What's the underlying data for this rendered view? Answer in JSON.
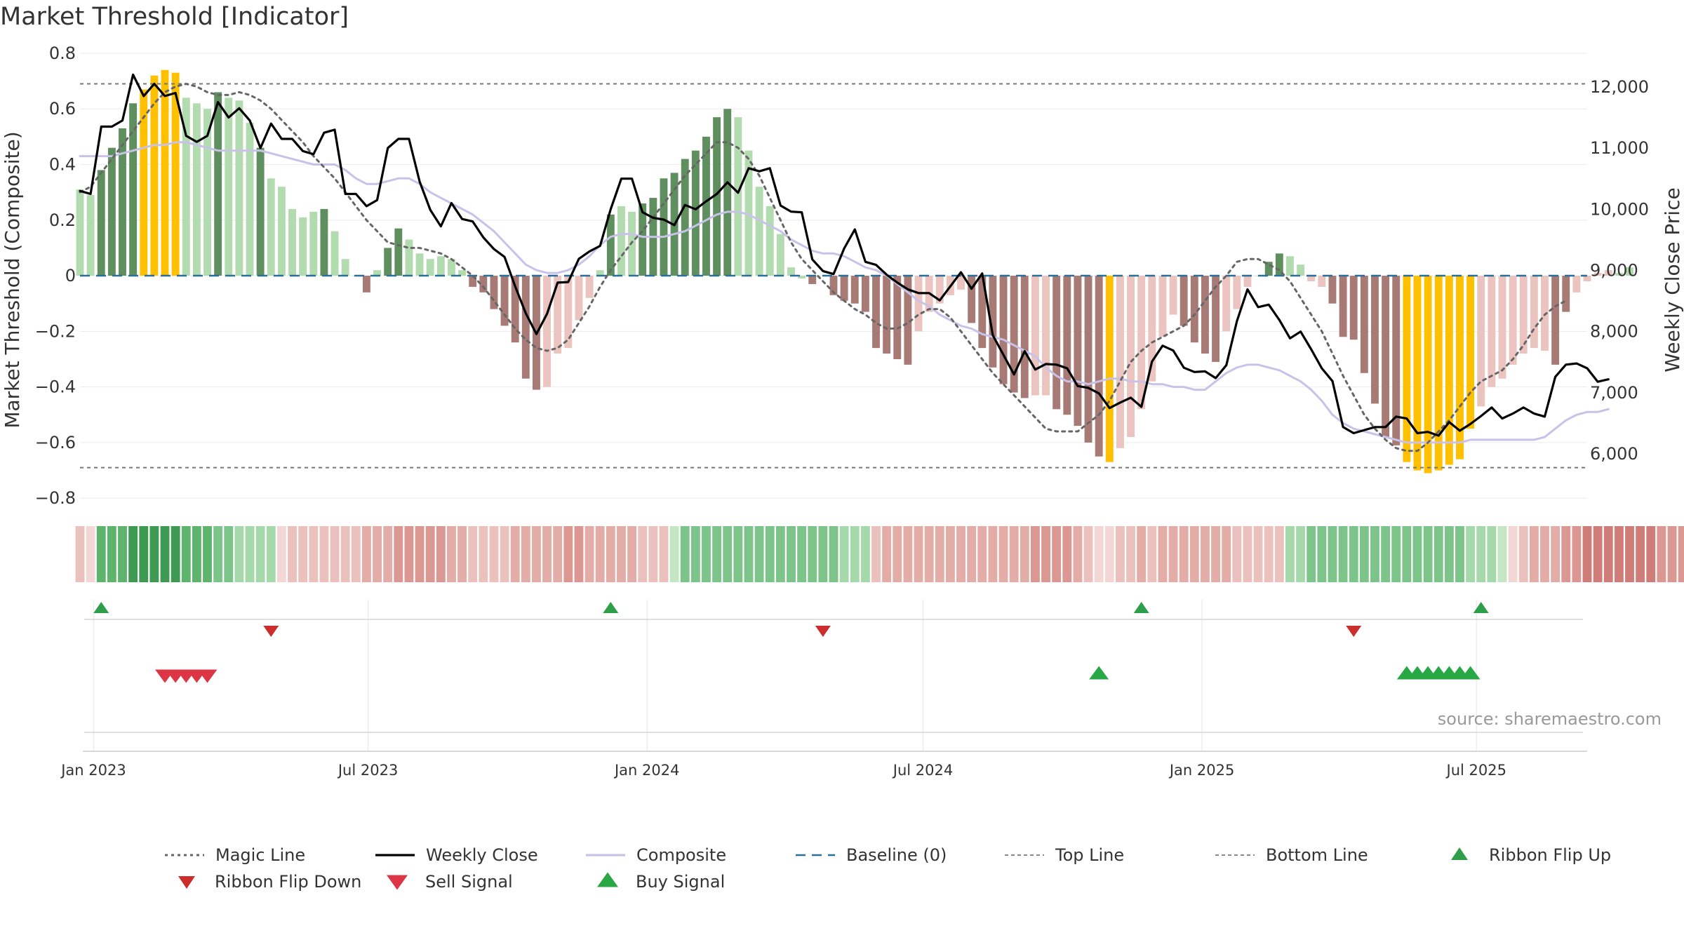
{
  "chart_data": {
    "type": "bar",
    "title": "Market Threshold [Indicator]",
    "ylabel": "Market Threshold (Composite)",
    "y2label": "Weekly Close Price",
    "source": "source: sharemaestro.com",
    "ylim": [
      -0.85,
      0.82
    ],
    "y2lim": [
      5050,
      12640
    ],
    "yticks": [
      0.8,
      0.6,
      0.4,
      0.2,
      0,
      -0.2,
      -0.4,
      -0.6,
      -0.8
    ],
    "yticklabels": [
      "0.8",
      "0.6",
      "0.4",
      "0.2",
      "0",
      "−0.2",
      "−0.4",
      "−0.6",
      "−0.8"
    ],
    "y2ticks": [
      12000,
      11000,
      10000,
      9000,
      8000,
      7000,
      6000
    ],
    "y2ticklabels": [
      "12,000",
      "11,000",
      "10,000",
      "9,000",
      "8,000",
      "7,000",
      "6,000"
    ],
    "x_range": [
      "2022-12-23",
      "2025-09-12"
    ],
    "x_start": "2022-12-23",
    "x_step_days": 7,
    "xticks": [
      "2023-01-01",
      "2023-07-01",
      "2024-01-01",
      "2024-07-01",
      "2025-01-01",
      "2025-07-01"
    ],
    "xticklabels": [
      "Jan 2023",
      "Jul 2023",
      "Jan 2024",
      "Jul 2024",
      "Jan 2025",
      "Jul 2025"
    ],
    "top_line": 0.69,
    "bottom_line": -0.69,
    "baseline": 0,
    "grid": true,
    "legend_position": "bottom",
    "colors": {
      "bull_strong": "#5f8f5f",
      "bull_weak": "#b3dbb0",
      "bear_strong": "#a87a76",
      "bear_weak": "#ebc3bf",
      "extreme": "#ffc000",
      "weekly_close": "#000000",
      "composite": "#c9c2e8",
      "magic_line": "#666666",
      "baseline": "#2a6f97",
      "threshold_lines": "#777777",
      "ribbon_up": "#2e9e4a",
      "ribbon_down": "#cc2d2d",
      "sell_signal": "#dc3545",
      "buy_signal": "#28a745"
    },
    "series": [
      {
        "name": "Composite",
        "kind": "bar",
        "values": [
          0.31,
          0.29,
          0.38,
          0.46,
          0.53,
          0.62,
          0.67,
          0.72,
          0.74,
          0.73,
          0.64,
          0.62,
          0.6,
          0.66,
          0.64,
          0.63,
          0.55,
          0.46,
          0.35,
          0.32,
          0.24,
          0.21,
          0.23,
          0.24,
          0.16,
          0.06,
          0.0,
          -0.06,
          0.02,
          0.1,
          0.17,
          0.13,
          0.08,
          0.06,
          0.07,
          0.06,
          0.02,
          -0.04,
          -0.06,
          -0.12,
          -0.18,
          -0.24,
          -0.37,
          -0.41,
          -0.4,
          -0.28,
          -0.26,
          -0.16,
          -0.08,
          0.02,
          0.22,
          0.25,
          0.23,
          0.26,
          0.28,
          0.35,
          0.37,
          0.42,
          0.45,
          0.5,
          0.57,
          0.6,
          0.57,
          0.45,
          0.32,
          0.25,
          0.15,
          0.03,
          -0.01,
          -0.03,
          0.0,
          -0.07,
          -0.09,
          -0.1,
          -0.13,
          -0.26,
          -0.28,
          -0.3,
          -0.32,
          -0.2,
          -0.13,
          -0.1,
          -0.07,
          -0.05,
          -0.17,
          -0.26,
          -0.33,
          -0.39,
          -0.42,
          -0.44,
          -0.43,
          -0.43,
          -0.48,
          -0.5,
          -0.54,
          -0.6,
          -0.65,
          -0.67,
          -0.62,
          -0.58,
          -0.48,
          -0.38,
          -0.22,
          -0.14,
          -0.18,
          -0.24,
          -0.28,
          -0.31,
          -0.2,
          -0.12,
          -0.04,
          0.0,
          0.05,
          0.08,
          0.07,
          0.04,
          -0.02,
          -0.04,
          -0.1,
          -0.22,
          -0.23,
          -0.35,
          -0.46,
          -0.58,
          -0.61,
          -0.67,
          -0.7,
          -0.71,
          -0.7,
          -0.68,
          -0.66,
          -0.55,
          -0.47,
          -0.4,
          -0.37,
          -0.32,
          -0.28,
          -0.26,
          -0.27,
          -0.32,
          -0.13,
          -0.06,
          -0.02,
          0.01,
          0.02,
          0.01,
          0.03
        ],
        "colors": [
          "bw",
          "bw",
          "bs",
          "bs",
          "bs",
          "bs",
          "ex",
          "ex",
          "ex",
          "ex",
          "bw",
          "bw",
          "bw",
          "bs",
          "bw",
          "bw",
          "bw",
          "bs",
          "bw",
          "bw",
          "bw",
          "bw",
          "bw",
          "bs",
          "bw",
          "bw",
          "bw",
          "rs",
          "bw",
          "bs",
          "bs",
          "bw",
          "bw",
          "bw",
          "bw",
          "bw",
          "bw",
          "rs",
          "rs",
          "rs",
          "rs",
          "rs",
          "rs",
          "rs",
          "rw",
          "rw",
          "rw",
          "rw",
          "rw",
          "bw",
          "bs",
          "bw",
          "bw",
          "bs",
          "bs",
          "bs",
          "bs",
          "bs",
          "bs",
          "bs",
          "bs",
          "bs",
          "bw",
          "bw",
          "bw",
          "bw",
          "bw",
          "bw",
          "bw",
          "rs",
          "bw",
          "rs",
          "rs",
          "rs",
          "rs",
          "rs",
          "rs",
          "rs",
          "rs",
          "rw",
          "rw",
          "rw",
          "rw",
          "rw",
          "rs",
          "rs",
          "rs",
          "rs",
          "rs",
          "rs",
          "rw",
          "rw",
          "rs",
          "rs",
          "rs",
          "rs",
          "rs",
          "ex",
          "rw",
          "rw",
          "rw",
          "rw",
          "rw",
          "rw",
          "rs",
          "rs",
          "rs",
          "rs",
          "rw",
          "rw",
          "rw",
          "bw",
          "bs",
          "bs",
          "bw",
          "bw",
          "rw",
          "rw",
          "rs",
          "rs",
          "rs",
          "rs",
          "rs",
          "rs",
          "rs",
          "ex",
          "ex",
          "ex",
          "ex",
          "ex",
          "ex",
          "ex",
          "rw",
          "rw",
          "rw",
          "rw",
          "rw",
          "rw",
          "rw",
          "rs",
          "rs",
          "rw",
          "rw",
          "rw",
          "rw",
          "bw",
          "bw",
          "bs"
        ]
      },
      {
        "name": "Weekly Close",
        "kind": "line",
        "values": [
          10300,
          10250,
          11350,
          11350,
          11450,
          12200,
          11850,
          12050,
          11850,
          11900,
          11200,
          11100,
          11200,
          11750,
          11500,
          11650,
          11450,
          11000,
          11400,
          11150,
          11150,
          10950,
          10900,
          11250,
          11300,
          10250,
          10250,
          10050,
          10150,
          11000,
          11150,
          11150,
          10450,
          9990,
          9720,
          10100,
          9840,
          9800,
          9540,
          9350,
          9220,
          8740,
          8300,
          7960,
          8290,
          8800,
          8810,
          9190,
          9310,
          9400,
          10000,
          10500,
          10500,
          9950,
          9860,
          9830,
          9740,
          10070,
          10000,
          10130,
          10250,
          10440,
          10270,
          10670,
          10620,
          10670,
          10060,
          9960,
          9950,
          9180,
          8990,
          8940,
          9360,
          9670,
          9140,
          9090,
          8930,
          8800,
          8690,
          8630,
          8630,
          8510,
          8740,
          8970,
          8700,
          8950,
          7940,
          7620,
          7300,
          7680,
          7380,
          7470,
          7460,
          7400,
          7110,
          7080,
          6990,
          6750,
          6840,
          6920,
          6770,
          7510,
          7770,
          7690,
          7410,
          7340,
          7350,
          7240,
          7450,
          8170,
          8690,
          8400,
          8440,
          8190,
          7890,
          8000,
          7710,
          7400,
          7190,
          6440,
          6340,
          6390,
          6440,
          6440,
          6610,
          6580,
          6340,
          6360,
          6300,
          6520,
          6380,
          6490,
          6620,
          6760,
          6580,
          6660,
          6760,
          6660,
          6610,
          7260,
          7460,
          7480,
          7400,
          7180,
          7220
        ]
      },
      {
        "name": "Composite",
        "kind": "line",
        "values": [
          0.43,
          0.43,
          0.43,
          0.43,
          0.44,
          0.45,
          0.46,
          0.47,
          0.47,
          0.48,
          0.48,
          0.47,
          0.46,
          0.45,
          0.45,
          0.45,
          0.45,
          0.45,
          0.44,
          0.43,
          0.42,
          0.41,
          0.4,
          0.4,
          0.4,
          0.38,
          0.35,
          0.33,
          0.33,
          0.34,
          0.35,
          0.35,
          0.33,
          0.3,
          0.28,
          0.26,
          0.24,
          0.22,
          0.19,
          0.16,
          0.12,
          0.08,
          0.04,
          0.02,
          0.01,
          0.01,
          0.02,
          0.04,
          0.07,
          0.11,
          0.14,
          0.15,
          0.15,
          0.14,
          0.14,
          0.14,
          0.15,
          0.16,
          0.18,
          0.2,
          0.22,
          0.23,
          0.23,
          0.22,
          0.2,
          0.18,
          0.16,
          0.13,
          0.11,
          0.09,
          0.08,
          0.08,
          0.07,
          0.05,
          0.03,
          0.02,
          0.0,
          -0.03,
          -0.06,
          -0.09,
          -0.11,
          -0.14,
          -0.16,
          -0.18,
          -0.19,
          -0.21,
          -0.22,
          -0.23,
          -0.25,
          -0.27,
          -0.29,
          -0.33,
          -0.36,
          -0.38,
          -0.38,
          -0.39,
          -0.38,
          -0.37,
          -0.37,
          -0.38,
          -0.38,
          -0.39,
          -0.39,
          -0.4,
          -0.4,
          -0.41,
          -0.41,
          -0.38,
          -0.35,
          -0.33,
          -0.32,
          -0.32,
          -0.33,
          -0.34,
          -0.36,
          -0.38,
          -0.41,
          -0.45,
          -0.5,
          -0.53,
          -0.55,
          -0.56,
          -0.57,
          -0.58,
          -0.59,
          -0.6,
          -0.6,
          -0.6,
          -0.6,
          -0.6,
          -0.6,
          -0.59,
          -0.59,
          -0.59,
          -0.59,
          -0.59,
          -0.59,
          -0.59,
          -0.58,
          -0.55,
          -0.52,
          -0.5,
          -0.49,
          -0.49,
          -0.48
        ]
      },
      {
        "name": "Magic Line",
        "kind": "line",
        "values": [
          0.3,
          0.32,
          0.37,
          0.42,
          0.47,
          0.52,
          0.57,
          0.62,
          0.66,
          0.68,
          0.69,
          0.68,
          0.66,
          0.65,
          0.65,
          0.66,
          0.65,
          0.63,
          0.6,
          0.56,
          0.52,
          0.48,
          0.43,
          0.39,
          0.35,
          0.3,
          0.25,
          0.2,
          0.16,
          0.12,
          0.11,
          0.1,
          0.1,
          0.09,
          0.08,
          0.06,
          0.03,
          0.0,
          -0.04,
          -0.09,
          -0.14,
          -0.19,
          -0.23,
          -0.26,
          -0.27,
          -0.26,
          -0.23,
          -0.17,
          -0.11,
          -0.04,
          0.02,
          0.07,
          0.12,
          0.16,
          0.21,
          0.26,
          0.31,
          0.36,
          0.4,
          0.44,
          0.48,
          0.48,
          0.46,
          0.42,
          0.36,
          0.28,
          0.2,
          0.12,
          0.06,
          0.02,
          -0.02,
          -0.06,
          -0.09,
          -0.12,
          -0.14,
          -0.17,
          -0.19,
          -0.19,
          -0.17,
          -0.14,
          -0.12,
          -0.12,
          -0.15,
          -0.2,
          -0.25,
          -0.3,
          -0.35,
          -0.39,
          -0.43,
          -0.47,
          -0.51,
          -0.55,
          -0.56,
          -0.56,
          -0.56,
          -0.53,
          -0.5,
          -0.45,
          -0.38,
          -0.31,
          -0.27,
          -0.24,
          -0.22,
          -0.2,
          -0.18,
          -0.14,
          -0.09,
          -0.04,
          0.0,
          0.05,
          0.06,
          0.06,
          0.04,
          0.02,
          -0.02,
          -0.08,
          -0.14,
          -0.2,
          -0.28,
          -0.36,
          -0.43,
          -0.5,
          -0.55,
          -0.59,
          -0.62,
          -0.63,
          -0.63,
          -0.6,
          -0.56,
          -0.52,
          -0.47,
          -0.42,
          -0.38,
          -0.36,
          -0.34,
          -0.3,
          -0.25,
          -0.19,
          -0.14,
          -0.11,
          -0.09
        ]
      }
    ],
    "ribbon": {
      "palette": {
        "g4": "#3e9a52",
        "g3": "#5fb46d",
        "g2": "#7cc48a",
        "g1": "#a5d8ab",
        "g0": "#c4e6c5",
        "r0": "#f2d7d5",
        "r1": "#eac1bd",
        "r2": "#e3aca7",
        "r3": "#db9791",
        "r4": "#d07d7a"
      },
      "colors": [
        "r1",
        "r0",
        "g3",
        "g3",
        "g3",
        "g4",
        "g4",
        "g4",
        "g4",
        "g4",
        "g3",
        "g3",
        "g3",
        "g2",
        "g2",
        "g1",
        "g1",
        "g1",
        "g1",
        "r0",
        "r1",
        "r1",
        "r1",
        "r1",
        "r1",
        "r1",
        "r1",
        "r2",
        "r2",
        "r2",
        "r3",
        "r3",
        "r3",
        "r3",
        "r3",
        "r2",
        "r2",
        "r1",
        "r1",
        "r1",
        "r1",
        "r2",
        "r2",
        "r2",
        "r2",
        "r2",
        "r3",
        "r3",
        "r2",
        "r2",
        "r2",
        "r2",
        "r2",
        "r1",
        "r1",
        "r1",
        "g0",
        "g2",
        "g2",
        "g2",
        "g2",
        "g2",
        "g2",
        "g2",
        "g2",
        "g2",
        "g2",
        "g2",
        "g2",
        "g2",
        "g2",
        "g2",
        "g1",
        "g1",
        "g1",
        "r1",
        "r2",
        "r2",
        "r2",
        "r2",
        "r2",
        "r2",
        "r2",
        "r2",
        "r2",
        "r2",
        "r2",
        "r2",
        "r2",
        "r2",
        "r3",
        "r3",
        "r3",
        "r3",
        "r2",
        "r1",
        "r0",
        "r0",
        "r1",
        "r1",
        "r2",
        "r1",
        "r2",
        "r2",
        "r2",
        "r2",
        "r2",
        "r2",
        "r2",
        "r1",
        "r1",
        "r1",
        "r1",
        "r1",
        "g1",
        "g1",
        "g2",
        "g2",
        "g2",
        "g2",
        "g2",
        "g2",
        "g2",
        "g2",
        "g2",
        "g2",
        "g2",
        "g2",
        "g2",
        "g2",
        "g2",
        "g1",
        "g1",
        "g1",
        "g0",
        "r0",
        "r1",
        "r2",
        "r2",
        "r2",
        "r3",
        "r3",
        "r4",
        "r4",
        "r4",
        "r4",
        "r4",
        "r4",
        "r4",
        "r3",
        "r3",
        "r3",
        "r3",
        "r3",
        "r1",
        "r0",
        "g1",
        "g1",
        "g2",
        "g2",
        "g2",
        "g2",
        "g2",
        "g2",
        "g2",
        "g2",
        "g2",
        "g2",
        "g2",
        "g3"
      ]
    },
    "ribbon_flip_up": [
      "2023-01-06",
      "2023-12-08",
      "2024-11-22",
      "2025-07-04"
    ],
    "ribbon_flip_down": [
      "2023-04-28",
      "2024-04-26",
      "2025-04-11"
    ],
    "sell_signal": [
      "2023-02-17",
      "2023-02-24",
      "2023-03-03",
      "2023-03-10",
      "2023-03-17"
    ],
    "buy_signal": [
      "2024-10-25",
      "2025-05-16",
      "2025-05-23",
      "2025-05-30",
      "2025-06-06",
      "2025-06-13",
      "2025-06-20",
      "2025-06-27"
    ],
    "legend": [
      {
        "label": "Magic Line",
        "kind": "dotted",
        "color": "#666666"
      },
      {
        "label": "Weekly Close",
        "kind": "solid",
        "color": "#000000"
      },
      {
        "label": "Composite",
        "kind": "solid",
        "color": "#c9c2e8"
      },
      {
        "label": "Baseline (0)",
        "kind": "dashed",
        "color": "#2a6f97"
      },
      {
        "label": "Top Line",
        "kind": "dashed-thin",
        "color": "#888888"
      },
      {
        "label": "Bottom Line",
        "kind": "dashed-thin",
        "color": "#888888"
      },
      {
        "label": "Ribbon Flip Up",
        "kind": "tri-up",
        "color": "#2e9e4a"
      },
      {
        "label": "Ribbon Flip Down",
        "kind": "tri-down",
        "color": "#cc2d2d"
      },
      {
        "label": "Sell Signal",
        "kind": "tri-down-big",
        "color": "#dc3545"
      },
      {
        "label": "Buy Signal",
        "kind": "tri-up-big",
        "color": "#28a745"
      }
    ]
  }
}
